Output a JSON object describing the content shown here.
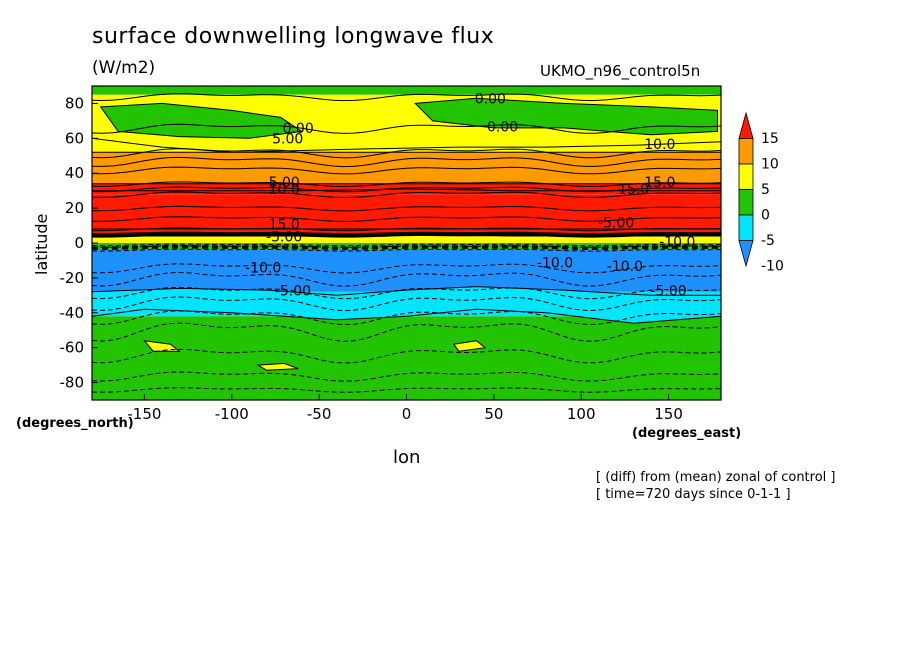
{
  "chart_data": {
    "type": "heatmap",
    "title": "surface downwelling longwave flux",
    "units": "(W/m2)",
    "run_name": "UKMO_n96_control5n",
    "xlabel": "lon",
    "ylabel": "latitude",
    "x_units_label": "(degrees_east)",
    "y_units_label": "(degrees_north)",
    "xlim": [
      -180,
      180
    ],
    "ylim": [
      -90,
      90
    ],
    "x_ticks": [
      -150,
      -100,
      -50,
      0,
      50,
      100,
      150
    ],
    "y_ticks": [
      -80,
      -60,
      -40,
      -20,
      0,
      20,
      40,
      60,
      80
    ],
    "colorbar": {
      "levels": [
        -10,
        -5,
        0,
        5,
        10,
        15
      ],
      "level_labels": [
        "15",
        "10",
        "5",
        "0",
        "-5",
        "-10"
      ],
      "colors": [
        "#1e90ff",
        "#00e5ff",
        "#22c400",
        "#ffff00",
        "#ff9a00",
        "#ff1a00"
      ]
    },
    "zonal_bands": [
      {
        "lat_from": 90,
        "lat_to": 85,
        "value": -2
      },
      {
        "lat_from": 85,
        "lat_to": 66,
        "value": 2
      },
      {
        "lat_from": 66,
        "lat_to": 52,
        "value": 3
      },
      {
        "lat_from": 52,
        "lat_to": 34,
        "value": 7
      },
      {
        "lat_from": 34,
        "lat_to": 28,
        "value": 12
      },
      {
        "lat_from": 28,
        "lat_to": 8,
        "value": 17
      },
      {
        "lat_from": 8,
        "lat_to": 4,
        "value": 12
      },
      {
        "lat_from": 4,
        "lat_to": 0,
        "value": 3
      },
      {
        "lat_from": 0,
        "lat_to": -4,
        "value": -3
      },
      {
        "lat_from": -4,
        "lat_to": -28,
        "value": -12
      },
      {
        "lat_from": -28,
        "lat_to": -42,
        "value": -7
      },
      {
        "lat_from": -42,
        "lat_to": -90,
        "value": -3
      }
    ],
    "contour_labels": [
      "0.00",
      "0.00",
      "0.00",
      "5.00",
      "5.00",
      "10.0",
      "10.0",
      "15.0",
      "15.0",
      "15.0",
      "-5.00",
      "-5.00",
      "-10.0",
      "-10.0",
      "-10.0",
      "-10.0",
      "-5.00",
      "-5.00"
    ],
    "annotations": [
      "[ (diff) from (mean) zonal of control ]",
      "[ time=720 days since 0-1-1 ]"
    ]
  }
}
